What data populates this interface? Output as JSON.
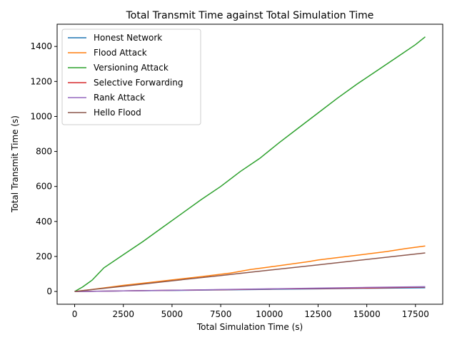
{
  "chart_data": {
    "type": "line",
    "title": "Total Transmit Time against Total Simulation Time",
    "xlabel": "Total Simulation Time (s)",
    "ylabel": "Total Transmit Time (s)",
    "xlim": [
      -900,
      18900
    ],
    "ylim": [
      -73,
      1527
    ],
    "xticks": [
      0,
      2500,
      5000,
      7500,
      10000,
      12500,
      15000,
      17500
    ],
    "xtick_labels": [
      "0",
      "2500",
      "5000",
      "7500",
      "10000",
      "12500",
      "15000",
      "17500"
    ],
    "yticks": [
      0,
      200,
      400,
      600,
      800,
      1000,
      1200,
      1400
    ],
    "ytick_labels": [
      "0",
      "200",
      "400",
      "600",
      "800",
      "1000",
      "1200",
      "1400"
    ],
    "grid": false,
    "legend_position": "upper-left",
    "series": [
      {
        "name": "Honest Network",
        "color": "#1f77b4",
        "x": [
          0,
          2500,
          5000,
          7500,
          10000,
          12500,
          15000,
          18000
        ],
        "y": [
          0,
          3,
          6,
          9,
          12,
          15,
          18,
          21
        ]
      },
      {
        "name": "Flood Attack",
        "color": "#ff7f0e",
        "x": [
          0,
          1000,
          2500,
          3500,
          5000,
          6500,
          8000,
          9000,
          10000,
          12000,
          12500,
          14000,
          16000,
          17000,
          18000
        ],
        "y": [
          0,
          13,
          35,
          47,
          66,
          85,
          105,
          125,
          140,
          170,
          180,
          200,
          228,
          245,
          260
        ]
      },
      {
        "name": "Versioning Attack",
        "color": "#2ca02c",
        "x": [
          0,
          400,
          900,
          1500,
          2500,
          3500,
          4500,
          5500,
          6500,
          7500,
          8500,
          9500,
          10500,
          11500,
          12500,
          13500,
          14500,
          15500,
          16500,
          17500,
          18000
        ],
        "y": [
          0,
          25,
          65,
          135,
          210,
          285,
          365,
          445,
          525,
          600,
          685,
          760,
          850,
          935,
          1020,
          1105,
          1185,
          1260,
          1335,
          1410,
          1455
        ]
      },
      {
        "name": "Selective Forwarding",
        "color": "#d62728",
        "x": [
          0,
          2500,
          5000,
          7500,
          10000,
          12500,
          15000,
          18000
        ],
        "y": [
          0,
          3,
          7,
          10,
          14,
          17,
          20,
          25
        ]
      },
      {
        "name": "Rank Attack",
        "color": "#9467bd",
        "x": [
          0,
          2500,
          5000,
          7500,
          10000,
          12500,
          15000,
          18000
        ],
        "y": [
          0,
          3,
          7,
          11,
          15,
          19,
          23,
          27
        ]
      },
      {
        "name": "Hello Flood",
        "color": "#8c564b",
        "x": [
          0,
          2500,
          5000,
          7500,
          10000,
          12500,
          15000,
          18000
        ],
        "y": [
          0,
          30,
          61,
          91,
          122,
          152,
          183,
          220
        ]
      }
    ]
  }
}
